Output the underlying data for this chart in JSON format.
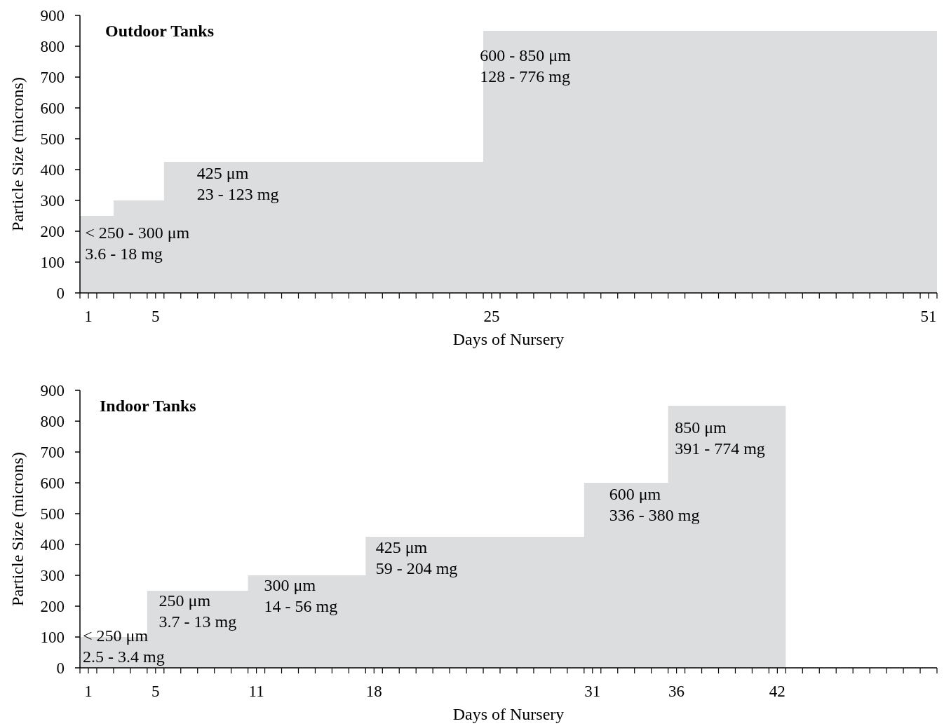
{
  "chart_data": [
    {
      "type": "area",
      "title": "Outdoor Tanks",
      "xlabel": "Days of Nursery",
      "ylabel": "Particle Size (microns)",
      "color": "#dcdddf",
      "ylim": [
        0,
        900
      ],
      "yticks": [
        0,
        100,
        200,
        300,
        400,
        500,
        600,
        700,
        800,
        900
      ],
      "xlim": [
        0.5,
        51.5
      ],
      "xticks": [
        {
          "value": 0.5,
          "label": null
        },
        1,
        {
          "value": 1.5,
          "label": null
        },
        {
          "value": 2.5,
          "label": null
        },
        {
          "value": 3.5,
          "label": null
        },
        {
          "value": 4.5,
          "label": null
        },
        5,
        {
          "value": 5.5,
          "label": null
        },
        {
          "value": 6.5,
          "label": null
        },
        {
          "value": 7.5,
          "label": null
        },
        {
          "value": 8.5,
          "label": null
        },
        {
          "value": 9.5,
          "label": null
        },
        {
          "value": 10.5,
          "label": null
        },
        {
          "value": 11.5,
          "label": null
        },
        {
          "value": 12.5,
          "label": null
        },
        {
          "value": 13.5,
          "label": null
        },
        {
          "value": 14.5,
          "label": null
        },
        {
          "value": 15.5,
          "label": null
        },
        {
          "value": 16.5,
          "label": null
        },
        {
          "value": 17.5,
          "label": null
        },
        {
          "value": 18.5,
          "label": null
        },
        {
          "value": 19.5,
          "label": null
        },
        {
          "value": 20.5,
          "label": null
        },
        {
          "value": 21.5,
          "label": null
        },
        {
          "value": 22.5,
          "label": null
        },
        {
          "value": 23.5,
          "label": null
        },
        {
          "value": 24.5,
          "label": null
        },
        25,
        {
          "value": 25.5,
          "label": null
        },
        {
          "value": 26.5,
          "label": null
        },
        {
          "value": 27.5,
          "label": null
        },
        {
          "value": 28.5,
          "label": null
        },
        {
          "value": 29.5,
          "label": null
        },
        {
          "value": 30.5,
          "label": null
        },
        {
          "value": 31.5,
          "label": null
        },
        {
          "value": 32.5,
          "label": null
        },
        {
          "value": 33.5,
          "label": null
        },
        {
          "value": 34.5,
          "label": null
        },
        {
          "value": 35.5,
          "label": null
        },
        {
          "value": 36.5,
          "label": null
        },
        {
          "value": 37.5,
          "label": null
        },
        {
          "value": 38.5,
          "label": null
        },
        {
          "value": 39.5,
          "label": null
        },
        {
          "value": 40.5,
          "label": null
        },
        {
          "value": 41.5,
          "label": null
        },
        {
          "value": 42.5,
          "label": null
        },
        {
          "value": 43.5,
          "label": null
        },
        {
          "value": 44.5,
          "label": null
        },
        {
          "value": 45.5,
          "label": null
        },
        {
          "value": 46.5,
          "label": null
        },
        {
          "value": 47.5,
          "label": null
        },
        {
          "value": 48.5,
          "label": null
        },
        {
          "value": 49.5,
          "label": null
        },
        {
          "value": 50.5,
          "label": null
        },
        51,
        {
          "value": 51.5,
          "label": null
        }
      ],
      "x": [
        0.5,
        2.5,
        2.5,
        5.5,
        5.5,
        24.5,
        24.5,
        51.5
      ],
      "values": [
        250,
        250,
        300,
        300,
        425,
        425,
        850,
        850
      ],
      "annotations": [
        "< 250 - 300 μm\n3.6 - 18 mg",
        "425 μm\n23 - 123 mg",
        "600 - 850 μm\n128 - 776 mg"
      ]
    },
    {
      "type": "area",
      "title": "Indoor Tanks",
      "xlabel": "Days of Nursery",
      "ylabel": "Particle Size (microns)",
      "color": "#dcdddf",
      "ylim": [
        0,
        900
      ],
      "yticks": [
        0,
        100,
        200,
        300,
        400,
        500,
        600,
        700,
        800,
        900
      ],
      "xlim": [
        0.5,
        51.5
      ],
      "xticks": [
        {
          "value": 0.5,
          "label": null
        },
        1,
        {
          "value": 1.5,
          "label": null
        },
        {
          "value": 2.5,
          "label": null
        },
        {
          "value": 3.5,
          "label": null
        },
        {
          "value": 4.5,
          "label": null
        },
        5,
        {
          "value": 5.5,
          "label": null
        },
        {
          "value": 6.5,
          "label": null
        },
        {
          "value": 7.5,
          "label": null
        },
        {
          "value": 8.5,
          "label": null
        },
        {
          "value": 9.5,
          "label": null
        },
        {
          "value": 10.5,
          "label": null
        },
        11,
        {
          "value": 11.5,
          "label": null
        },
        {
          "value": 12.5,
          "label": null
        },
        {
          "value": 13.5,
          "label": null
        },
        {
          "value": 14.5,
          "label": null
        },
        {
          "value": 15.5,
          "label": null
        },
        {
          "value": 16.5,
          "label": null
        },
        {
          "value": 17.5,
          "label": null
        },
        18,
        {
          "value": 18.5,
          "label": null
        },
        {
          "value": 19.5,
          "label": null
        },
        {
          "value": 20.5,
          "label": null
        },
        {
          "value": 21.5,
          "label": null
        },
        {
          "value": 22.5,
          "label": null
        },
        {
          "value": 23.5,
          "label": null
        },
        {
          "value": 24.5,
          "label": null
        },
        {
          "value": 25.5,
          "label": null
        },
        {
          "value": 26.5,
          "label": null
        },
        {
          "value": 27.5,
          "label": null
        },
        {
          "value": 28.5,
          "label": null
        },
        {
          "value": 29.5,
          "label": null
        },
        {
          "value": 30.5,
          "label": null
        },
        31,
        {
          "value": 31.5,
          "label": null
        },
        {
          "value": 32.5,
          "label": null
        },
        {
          "value": 33.5,
          "label": null
        },
        {
          "value": 34.5,
          "label": null
        },
        {
          "value": 35.5,
          "label": null
        },
        36,
        {
          "value": 36.5,
          "label": null
        },
        {
          "value": 37.5,
          "label": null
        },
        {
          "value": 38.5,
          "label": null
        },
        {
          "value": 39.5,
          "label": null
        },
        {
          "value": 40.5,
          "label": null
        },
        {
          "value": 41.5,
          "label": null
        },
        42,
        {
          "value": 42.5,
          "label": null
        },
        {
          "value": 43.5,
          "label": null
        },
        {
          "value": 44.5,
          "label": null
        },
        {
          "value": 45.5,
          "label": null
        },
        {
          "value": 46.5,
          "label": null
        },
        {
          "value": 47.5,
          "label": null
        },
        {
          "value": 48.5,
          "label": null
        },
        {
          "value": 49.5,
          "label": null
        },
        {
          "value": 50.5,
          "label": null
        },
        {
          "value": 51.5,
          "label": null
        }
      ],
      "x": [
        0.5,
        4.5,
        4.5,
        10.5,
        10.5,
        17.5,
        17.5,
        30.5,
        30.5,
        35.5,
        35.5,
        42.5
      ],
      "values": [
        100,
        100,
        250,
        250,
        300,
        300,
        425,
        425,
        600,
        600,
        850,
        850
      ],
      "annotations": [
        "< 250 μm\n2.5 - 3.4 mg",
        "250 μm\n3.7 - 13 mg",
        "300 μm\n14 - 56 mg",
        "425 μm\n59 - 204 mg",
        "600 μm\n336 - 380 mg",
        "850 μm\n391 - 774 mg"
      ]
    }
  ]
}
